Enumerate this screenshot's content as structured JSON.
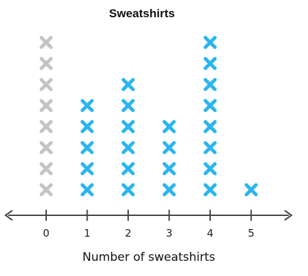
{
  "chart_data": {
    "type": "dot-plot",
    "title": "Sweatshirts",
    "xlabel": "Number of sweatshirts",
    "ylabel": "",
    "x": [
      0,
      1,
      2,
      3,
      4,
      5
    ],
    "tick_labels": [
      "0",
      "1",
      "2",
      "3",
      "4",
      "5"
    ],
    "counts": [
      8,
      5,
      6,
      4,
      8,
      1
    ],
    "marker": "x",
    "colors": {
      "value_0": "#c4c4c4",
      "default": "#2bb5ef",
      "axis": "#444444"
    }
  }
}
